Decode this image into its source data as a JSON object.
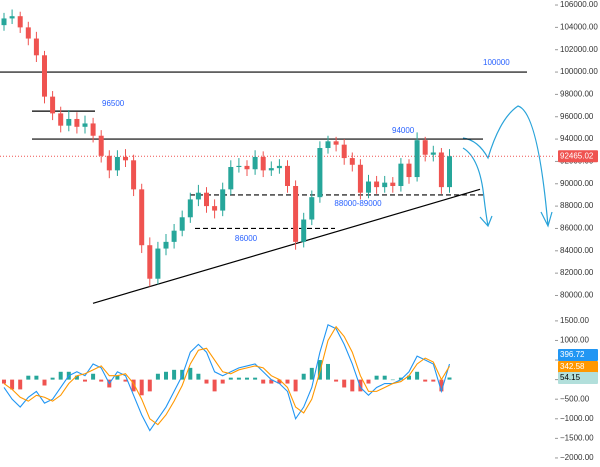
{
  "chart_data": [
    {
      "type": "candlestick",
      "ylim": [
        78700,
        106450
      ],
      "yticks": [
        {
          "value": 106000,
          "label": "106000.00"
        },
        {
          "value": 104000,
          "label": "104000.00"
        },
        {
          "value": 102000,
          "label": "102000.00"
        },
        {
          "value": 100000,
          "label": "100000.00"
        },
        {
          "value": 98000,
          "label": "98000.00"
        },
        {
          "value": 96000,
          "label": "96000.00"
        },
        {
          "value": 94000,
          "label": "94000.00"
        },
        {
          "value": 92000,
          "label": "92000.00"
        },
        {
          "value": 90000,
          "label": "90000.00"
        },
        {
          "value": 88000,
          "label": "88000.00"
        },
        {
          "value": 86000,
          "label": "86000.00"
        },
        {
          "value": 84000,
          "label": "84000.00"
        },
        {
          "value": 82000,
          "label": "82000.00"
        },
        {
          "value": 80000,
          "label": "80000.00"
        }
      ],
      "up_color": "#26a69a",
      "down_color": "#ef5350",
      "open": [
        104200,
        104800,
        105000,
        104000,
        103000,
        101500,
        97800,
        96300,
        95200,
        95800,
        95100,
        95400,
        94300,
        92500,
        91200,
        92400,
        92100,
        89500,
        84500,
        81500,
        84200,
        84800,
        85800,
        87000,
        88600,
        89200,
        88000,
        87600,
        89500,
        91500,
        91600,
        91300,
        92400,
        91200,
        91400,
        91600,
        89800,
        84800,
        86800,
        88800,
        93200,
        93800,
        93500,
        92300,
        91700,
        89200,
        90200,
        89700,
        90100,
        89800,
        91800,
        90600,
        93900,
        92600,
        92800,
        89700
      ],
      "high": [
        105300,
        105600,
        105400,
        104500,
        103600,
        101900,
        98300,
        96900,
        96600,
        96400,
        96100,
        95900,
        94800,
        93000,
        93000,
        93100,
        92600,
        90000,
        85200,
        84800,
        85500,
        86400,
        87600,
        89200,
        89900,
        89700,
        88600,
        90100,
        92100,
        92300,
        92100,
        93000,
        92900,
        92000,
        92200,
        92100,
        90300,
        87400,
        89400,
        93800,
        94300,
        94200,
        94000,
        92800,
        92200,
        90800,
        90700,
        90700,
        90600,
        92300,
        92200,
        94600,
        94200,
        93400,
        93200,
        93100
      ],
      "low": [
        103700,
        104300,
        103500,
        102400,
        100900,
        97200,
        95700,
        94600,
        94700,
        94500,
        94500,
        93700,
        91900,
        90500,
        90700,
        91500,
        88900,
        83800,
        80800,
        81000,
        83600,
        84200,
        85300,
        86500,
        88000,
        87400,
        86900,
        87100,
        89000,
        91000,
        90700,
        90800,
        90600,
        90700,
        90900,
        89200,
        84100,
        84300,
        86300,
        88300,
        92700,
        92900,
        91700,
        91100,
        88600,
        88700,
        89100,
        89200,
        89200,
        89300,
        90000,
        90200,
        92000,
        92000,
        89100,
        89200
      ],
      "close": [
        104800,
        105000,
        104000,
        103000,
        101500,
        97800,
        96300,
        95200,
        95800,
        95100,
        95400,
        94300,
        92500,
        91200,
        92400,
        92100,
        89500,
        84500,
        81500,
        84200,
        84800,
        85800,
        87000,
        88600,
        89200,
        88000,
        87600,
        89500,
        91500,
        91600,
        91300,
        92400,
        91200,
        91400,
        91600,
        89800,
        84800,
        86800,
        88800,
        93200,
        93800,
        93500,
        92300,
        91700,
        89200,
        90200,
        89700,
        90100,
        89800,
        91800,
        90600,
        93900,
        92600,
        92800,
        89700,
        92465.02
      ],
      "last_price": 92465.02,
      "levels": [
        {
          "value": 100000,
          "label": "100000"
        },
        {
          "value": 96500,
          "label": "96500"
        },
        {
          "value": 94000,
          "label": "94000"
        }
      ],
      "dashed_levels": [
        {
          "value": 89000,
          "label": "88000-89000"
        },
        {
          "value": 86000,
          "label": "86000"
        }
      ],
      "trendline": [
        79300,
        89500
      ]
    },
    {
      "type": "macd",
      "ylim": [
        -2180,
        1650
      ],
      "yticks": [
        {
          "value": 1500,
          "label": "1500.00"
        },
        {
          "value": 1000,
          "label": "1000.00"
        },
        {
          "value": 500,
          "label": "500.00"
        },
        {
          "value": 0,
          "label": "0.00"
        },
        {
          "value": -500,
          "label": "−500.00"
        },
        {
          "value": -1000,
          "label": "−1000.00"
        },
        {
          "value": -1500,
          "label": "−1500.00"
        },
        {
          "value": -2000,
          "label": "−2000.00"
        }
      ],
      "series": [
        {
          "color": "#2196f3",
          "values": [
            -200,
            -500,
            -700,
            -450,
            -300,
            -600,
            -500,
            -200,
            100,
            200,
            100,
            400,
            300,
            -100,
            200,
            100,
            -400,
            -900,
            -1300,
            -1000,
            -700,
            -300,
            100,
            700,
            900,
            700,
            200,
            100,
            200,
            300,
            350,
            400,
            200,
            0,
            -100,
            -300,
            -1000,
            -700,
            -200,
            700,
            1400,
            1300,
            900,
            400,
            -200,
            -400,
            -200,
            -100,
            -100,
            0,
            200,
            600,
            500,
            400,
            -300,
            396.72
          ]
        },
        {
          "color": "#ff9800",
          "values": [
            -100,
            -250,
            -450,
            -550,
            -400,
            -450,
            -550,
            -400,
            -100,
            100,
            150,
            250,
            350,
            100,
            100,
            150,
            -100,
            -500,
            -1000,
            -1150,
            -900,
            -550,
            -150,
            400,
            750,
            800,
            500,
            200,
            150,
            250,
            300,
            350,
            300,
            100,
            0,
            -200,
            -700,
            -850,
            -500,
            200,
            1000,
            1350,
            1100,
            700,
            100,
            -300,
            -300,
            -200,
            -100,
            -50,
            100,
            400,
            550,
            450,
            0,
            342.58
          ]
        }
      ],
      "histogram": {
        "up_color": "#26a69a",
        "down_color": "#ef5350",
        "label_color": "#b2dfdb",
        "values": [
          -100,
          -250,
          -250,
          100,
          100,
          -150,
          50,
          200,
          200,
          100,
          -50,
          150,
          -50,
          -200,
          100,
          -50,
          -300,
          -400,
          -300,
          150,
          200,
          250,
          250,
          300,
          150,
          -100,
          -300,
          -100,
          50,
          50,
          50,
          50,
          -100,
          -100,
          -100,
          -100,
          -300,
          150,
          300,
          500,
          400,
          -50,
          -200,
          -300,
          -300,
          -100,
          100,
          100,
          0,
          50,
          100,
          200,
          -50,
          -50,
          -300,
          54.15
        ]
      }
    }
  ]
}
